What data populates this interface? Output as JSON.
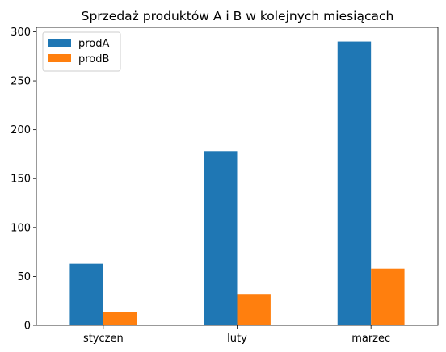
{
  "chart_data": {
    "type": "bar",
    "title": "Sprzedaż produktów A i B w kolejnych miesiącach",
    "xlabel": "",
    "ylabel": "",
    "categories": [
      "styczen",
      "luty",
      "marzec"
    ],
    "series": [
      {
        "name": "prodA",
        "values": [
          63,
          178,
          290
        ],
        "color": "#1f77b4"
      },
      {
        "name": "prodB",
        "values": [
          14,
          32,
          58
        ],
        "color": "#ff7f0e"
      }
    ],
    "ylim": [
      0,
      304.5
    ],
    "yticks": [
      0,
      50,
      100,
      150,
      200,
      250,
      300
    ],
    "grid": false,
    "legend_position": "top-left"
  }
}
